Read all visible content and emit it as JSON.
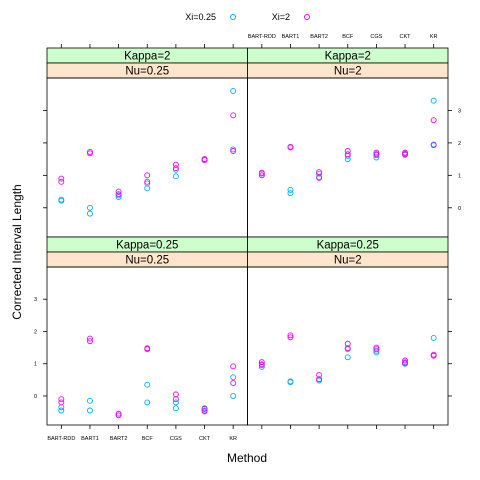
{
  "chart_data": {
    "type": "scatter",
    "xlabel": "Method",
    "ylabel": "Corrected Interval Length",
    "categories": [
      "BART-RDD",
      "BART1",
      "BART2",
      "BCF",
      "CGS",
      "CKT",
      "KR"
    ],
    "yticks": [
      0,
      1,
      2,
      3
    ],
    "ylim": [
      -0.9,
      4.0
    ],
    "legend_position": "top",
    "legend": [
      {
        "label": "Xi=0.25",
        "color": "#00aaff"
      },
      {
        "label": "Xi=2",
        "color": "#ff00ff"
      }
    ],
    "panels": [
      {
        "kappa_label": "Kappa=2",
        "nu_label": "Nu=0.25",
        "series": [
          {
            "name": "Xi=0.25",
            "points": [
              [
                0,
                0.25
              ],
              [
                0,
                0.22
              ],
              [
                1,
                0.0
              ],
              [
                1,
                -0.18
              ],
              [
                2,
                0.33
              ],
              [
                2,
                0.38
              ],
              [
                3,
                0.6
              ],
              [
                3,
                0.75
              ],
              [
                4,
                0.97
              ],
              [
                4,
                1.17
              ],
              [
                5,
                1.47
              ],
              [
                5,
                1.5
              ],
              [
                6,
                3.6
              ],
              [
                6,
                1.8
              ]
            ]
          },
          {
            "name": "Xi=2",
            "points": [
              [
                0,
                0.9
              ],
              [
                0,
                0.8
              ],
              [
                1,
                1.72
              ],
              [
                1,
                1.68
              ],
              [
                2,
                0.5
              ],
              [
                2,
                0.42
              ],
              [
                3,
                1.0
              ],
              [
                3,
                0.8
              ],
              [
                4,
                1.33
              ],
              [
                4,
                1.22
              ],
              [
                5,
                1.47
              ],
              [
                5,
                1.5
              ],
              [
                6,
                2.85
              ],
              [
                6,
                1.75
              ]
            ]
          }
        ]
      },
      {
        "kappa_label": "Kappa=2",
        "nu_label": "Nu=2",
        "series": [
          {
            "name": "Xi=0.25",
            "points": [
              [
                0,
                1.0
              ],
              [
                0,
                1.05
              ],
              [
                1,
                0.55
              ],
              [
                1,
                0.45
              ],
              [
                2,
                1.05
              ],
              [
                2,
                0.95
              ],
              [
                3,
                1.5
              ],
              [
                3,
                1.6
              ],
              [
                4,
                1.55
              ],
              [
                4,
                1.62
              ],
              [
                5,
                1.63
              ],
              [
                5,
                1.67
              ],
              [
                6,
                3.3
              ],
              [
                6,
                1.95
              ]
            ]
          },
          {
            "name": "Xi=2",
            "points": [
              [
                0,
                1.0
              ],
              [
                0,
                1.08
              ],
              [
                1,
                1.88
              ],
              [
                1,
                1.86
              ],
              [
                2,
                1.1
              ],
              [
                2,
                0.92
              ],
              [
                3,
                1.75
              ],
              [
                3,
                1.65
              ],
              [
                4,
                1.7
              ],
              [
                4,
                1.65
              ],
              [
                5,
                1.7
              ],
              [
                5,
                1.65
              ],
              [
                6,
                2.7
              ],
              [
                6,
                1.93
              ]
            ]
          }
        ]
      },
      {
        "kappa_label": "Kappa=0.25",
        "nu_label": "Nu=0.25",
        "series": [
          {
            "name": "Xi=0.25",
            "points": [
              [
                0,
                -0.35
              ],
              [
                0,
                -0.45
              ],
              [
                1,
                -0.15
              ],
              [
                1,
                -0.45
              ],
              [
                2,
                -0.55
              ],
              [
                2,
                -0.6
              ],
              [
                3,
                0.35
              ],
              [
                3,
                -0.2
              ],
              [
                4,
                -0.2
              ],
              [
                4,
                -0.38
              ],
              [
                5,
                -0.38
              ],
              [
                5,
                -0.45
              ],
              [
                6,
                0.58
              ],
              [
                6,
                0.0
              ]
            ]
          },
          {
            "name": "Xi=2",
            "points": [
              [
                0,
                -0.1
              ],
              [
                0,
                -0.2
              ],
              [
                1,
                1.78
              ],
              [
                1,
                1.7
              ],
              [
                2,
                -0.55
              ],
              [
                2,
                -0.6
              ],
              [
                3,
                1.48
              ],
              [
                3,
                1.45
              ],
              [
                4,
                0.05
              ],
              [
                4,
                -0.1
              ],
              [
                5,
                -0.4
              ],
              [
                5,
                -0.48
              ],
              [
                6,
                0.92
              ],
              [
                6,
                0.4
              ]
            ]
          }
        ]
      },
      {
        "kappa_label": "Kappa=0.25",
        "nu_label": "Nu=2",
        "series": [
          {
            "name": "Xi=0.25",
            "points": [
              [
                0,
                0.95
              ],
              [
                0,
                0.9
              ],
              [
                1,
                0.45
              ],
              [
                1,
                0.43
              ],
              [
                2,
                0.52
              ],
              [
                2,
                0.48
              ],
              [
                3,
                1.2
              ],
              [
                3,
                1.45
              ],
              [
                4,
                1.35
              ],
              [
                4,
                1.4
              ],
              [
                5,
                1.0
              ],
              [
                5,
                1.05
              ],
              [
                6,
                1.8
              ],
              [
                6,
                1.25
              ]
            ]
          },
          {
            "name": "Xi=2",
            "points": [
              [
                0,
                1.05
              ],
              [
                0,
                0.98
              ],
              [
                1,
                1.88
              ],
              [
                1,
                1.82
              ],
              [
                2,
                0.65
              ],
              [
                2,
                0.52
              ],
              [
                3,
                1.62
              ],
              [
                3,
                1.48
              ],
              [
                4,
                1.5
              ],
              [
                4,
                1.45
              ],
              [
                5,
                1.1
              ],
              [
                5,
                1.02
              ],
              [
                6,
                1.28
              ],
              [
                6,
                1.25
              ]
            ]
          }
        ]
      }
    ]
  }
}
